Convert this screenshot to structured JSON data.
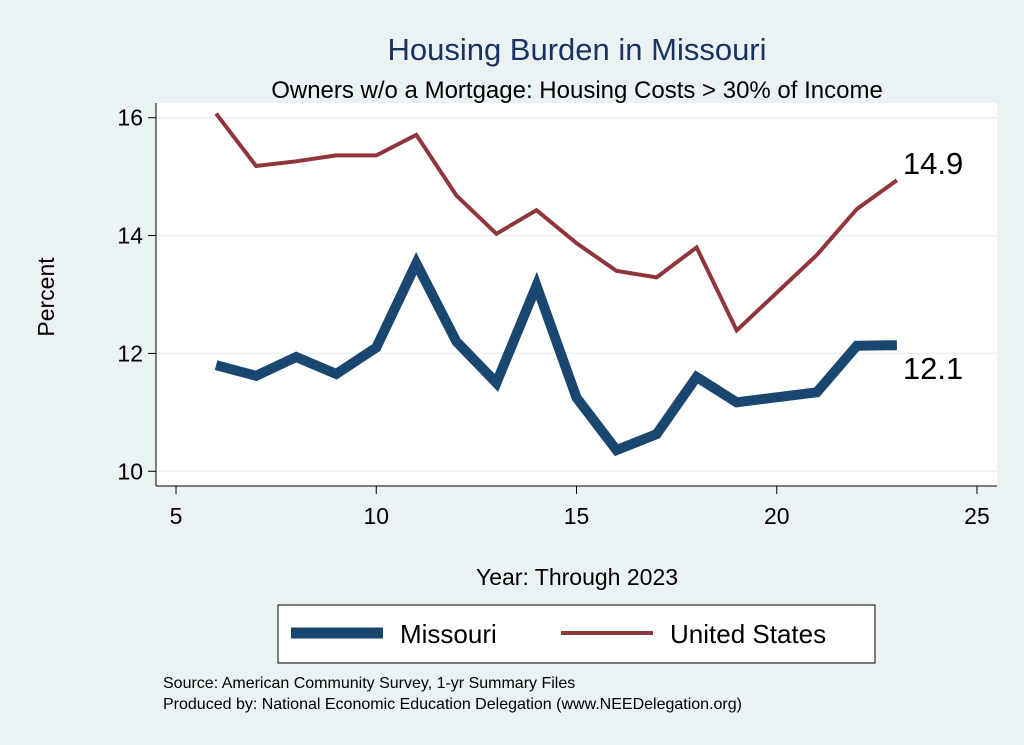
{
  "chart_data": {
    "type": "line",
    "title": "Housing Burden in Missouri",
    "subtitle": "Owners w/o a Mortgage: Housing Costs > 30% of Income",
    "xlabel": "Year: Through 2023",
    "ylabel": "Percent",
    "xlim": [
      4.5,
      25.5
    ],
    "ylim": [
      9.75,
      16.25
    ],
    "xticks": [
      5,
      10,
      15,
      20,
      25
    ],
    "yticks": [
      10,
      12,
      14,
      16
    ],
    "grid": true,
    "legend_position": "bottom",
    "series": [
      {
        "name": "Missouri",
        "color": "#1a476f",
        "x": [
          6,
          7,
          8,
          9,
          10,
          11,
          12,
          13,
          14,
          15,
          16,
          17,
          18,
          19,
          21,
          22,
          23
        ],
        "values": [
          11.8,
          11.62,
          11.94,
          11.65,
          12.1,
          13.53,
          12.2,
          11.5,
          13.15,
          11.25,
          10.36,
          10.63,
          11.6,
          11.17,
          11.34,
          12.13,
          12.14
        ],
        "end_label": "12.1"
      },
      {
        "name": "United States",
        "color": "#90353b",
        "x": [
          6,
          7,
          8,
          9,
          10,
          11,
          12,
          13,
          14,
          15,
          16,
          17,
          18,
          19,
          21,
          22,
          23
        ],
        "values": [
          16.07,
          15.18,
          15.26,
          15.36,
          15.36,
          15.71,
          14.68,
          14.03,
          14.43,
          13.87,
          13.4,
          13.29,
          13.8,
          12.39,
          13.67,
          14.45,
          14.94
        ],
        "end_label": "14.9"
      }
    ],
    "source_line": "Source: American Community Survey, 1-yr Summary Files",
    "produced_line": "Produced by: National Economic Education Delegation (www.NEEDelegation.org)"
  }
}
